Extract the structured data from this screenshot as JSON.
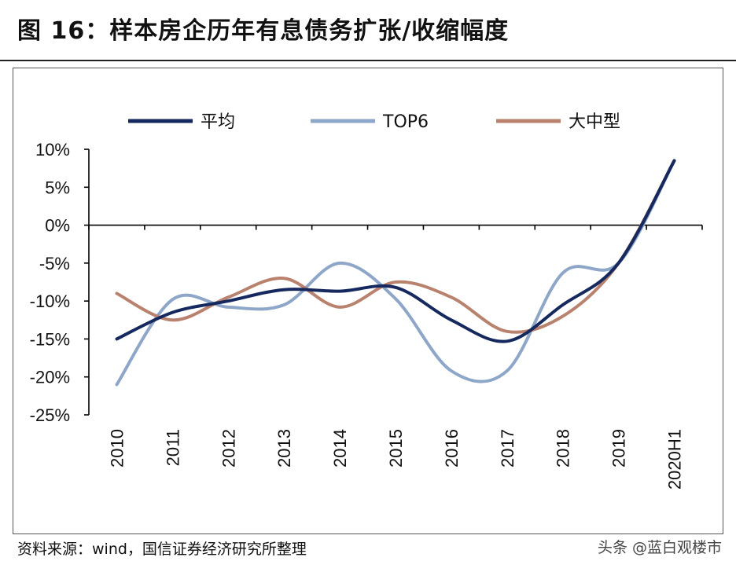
{
  "header": {
    "title": "图 16：样本房企历年有息债务扩张/收缩幅度"
  },
  "footer": {
    "source": "资料来源：wind，国信证券经济研究所整理",
    "watermark": "头条 @蓝白观楼市"
  },
  "chart_data": {
    "type": "line",
    "title": "",
    "xlabel": "",
    "ylabel": "",
    "categories": [
      "2010",
      "2011",
      "2012",
      "2013",
      "2014",
      "2015",
      "2016",
      "2017",
      "2018",
      "2019",
      "2020H1"
    ],
    "ylim": [
      -25,
      10
    ],
    "yticks": [
      10,
      5,
      0,
      -5,
      -10,
      -15,
      -20,
      -25
    ],
    "ytick_labels": [
      "10%",
      "5%",
      "0%",
      "-5%",
      "-10%",
      "-15%",
      "-20%",
      "-25%"
    ],
    "legend_position": "top",
    "grid": false,
    "smooth": true,
    "series": [
      {
        "name": "平均",
        "color": "#15295f",
        "values": [
          -15,
          -11.5,
          -10,
          -8.5,
          -8.7,
          -8.2,
          -12.5,
          -15.3,
          -10.5,
          -5,
          8.5
        ]
      },
      {
        "name": "TOP6",
        "color": "#8ea6c8",
        "values": [
          -21,
          -9.8,
          -10.8,
          -10.5,
          -5,
          -9.7,
          -19.2,
          -19.2,
          -6.3,
          -5,
          8.5
        ]
      },
      {
        "name": "大中型",
        "color": "#b8826e",
        "values": [
          -9,
          -12.5,
          -9.5,
          -7,
          -10.8,
          -7.5,
          -9.5,
          -14,
          -12,
          -5,
          8.5
        ]
      }
    ]
  }
}
